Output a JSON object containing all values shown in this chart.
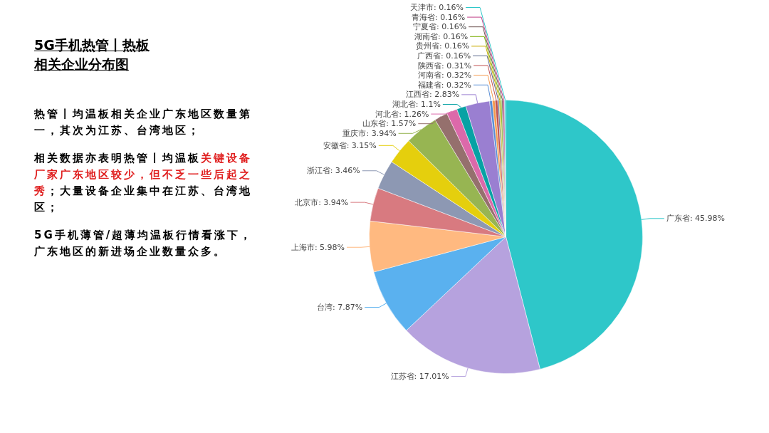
{
  "chart_data": {
    "type": "pie",
    "title": "5G手机热管丨热板",
    "subtitle": "相关企业分布图",
    "categories": [
      "广东省",
      "江苏省",
      "台湾",
      "上海市",
      "北京市",
      "浙江省",
      "安徽省",
      "重庆市",
      "山东省",
      "河北省",
      "湖北省",
      "江西省",
      "福建省",
      "河南省",
      "陕西省",
      "广西省",
      "贵州省",
      "湖南省",
      "宁夏省",
      "青海省",
      "天津市"
    ],
    "values": [
      45.98,
      17.01,
      7.87,
      5.98,
      3.94,
      3.46,
      3.15,
      3.94,
      1.57,
      1.26,
      1.1,
      2.83,
      0.32,
      0.32,
      0.31,
      0.16,
      0.16,
      0.16,
      0.16,
      0.16,
      0.16
    ],
    "colors": [
      "#2ec7c9",
      "#b6a2de",
      "#5ab1ef",
      "#ffb980",
      "#d87a80",
      "#8d98b3",
      "#e5cf0d",
      "#97b552",
      "#95706d",
      "#dc69aa",
      "#07a2a4",
      "#9a7fd1",
      "#588dd5",
      "#f5994e",
      "#c05050",
      "#59678c",
      "#c9ab00",
      "#7eb00a",
      "#6f5553",
      "#c14089",
      "#2ec7c9"
    ],
    "value_labels": [
      "45.98%",
      "17.01%",
      "7.87%",
      "5.98%",
      "3.94%",
      "3.46%",
      "3.15%",
      "3.94%",
      "1.57%",
      "1.26%",
      "1.1%",
      "2.83%",
      "0.32%",
      "0.32%",
      "0.31%",
      "0.16%",
      "0.16%",
      "0.16%",
      "0.16%",
      "0.16%",
      "0.16%"
    ],
    "legend": false,
    "annotations": [
      "热管丨均温板相关企业广东地区数量第一，其次为江苏、台湾地区；",
      "相关数据亦表明热管丨均温板",
      "关键设备厂家广东地区较少，但不乏一些后起之秀",
      "；大量设备企业集中在江苏、台湾地区；",
      "5G手机薄管/超薄均温板行情看涨下，广东地区的新进场企业数量众多。"
    ]
  }
}
